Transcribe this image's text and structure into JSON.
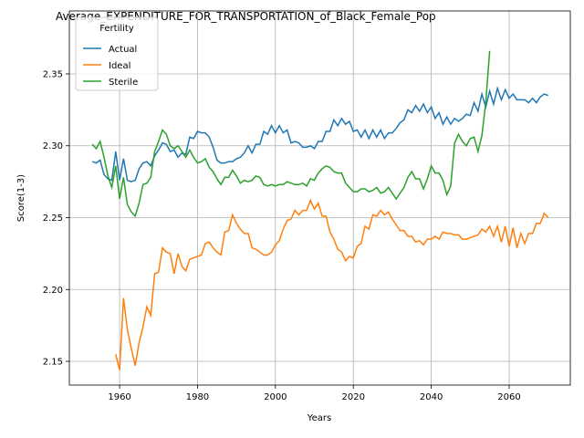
{
  "chart_data": {
    "type": "line",
    "title": "Average_EXPENDITURE_FOR_TRANSPORTATION_of_Black_Female_Pop",
    "x_label": "Years",
    "y_label": "Score(1-3)",
    "legend_title": "Fertility",
    "legend": "upper left",
    "grid": true,
    "xlim": [
      1947.1,
      2075.7
    ],
    "ylim": [
      2.1335,
      2.3938
    ],
    "xticks": [
      1960,
      1980,
      2000,
      2020,
      2040,
      2060
    ],
    "yticks": [
      2.15,
      {
        "value": 2.2,
        "label": "2.20"
      },
      2.25,
      {
        "value": 2.3,
        "label": "2.30"
      },
      2.35
    ],
    "x": [
      1953,
      1954,
      1955,
      1956,
      1957,
      1958,
      1959,
      1960,
      1961,
      1962,
      1963,
      1964,
      1965,
      1966,
      1967,
      1968,
      1969,
      1970,
      1971,
      1972,
      1973,
      1974,
      1975,
      1976,
      1977,
      1978,
      1979,
      1980,
      1981,
      1982,
      1983,
      1984,
      1985,
      1986,
      1987,
      1988,
      1989,
      1990,
      1991,
      1992,
      1993,
      1994,
      1995,
      1996,
      1997,
      1998,
      1999,
      2000,
      2001,
      2002,
      2003,
      2004,
      2005,
      2006,
      2007,
      2008,
      2009,
      2010,
      2011,
      2012,
      2013,
      2014,
      2015,
      2016,
      2017,
      2018,
      2019,
      2020,
      2021,
      2022,
      2023,
      2024,
      2025,
      2026,
      2027,
      2028,
      2029,
      2030,
      2031,
      2032,
      2033,
      2034,
      2035,
      2036,
      2037,
      2038,
      2039,
      2040,
      2041,
      2042,
      2043,
      2044,
      2045,
      2046,
      2047,
      2048,
      2049,
      2050,
      2051,
      2052,
      2053,
      2054,
      2055,
      2056,
      2057,
      2058,
      2059,
      2060,
      2061,
      2062,
      2063,
      2064,
      2065,
      2066,
      2067,
      2068,
      2069,
      2070
    ],
    "series": [
      {
        "name": "Actual",
        "color": "#1f77b4",
        "values": [
          2.289,
          2.288,
          2.29,
          2.28,
          2.277,
          2.276,
          2.296,
          2.276,
          2.291,
          2.276,
          2.275,
          2.276,
          2.284,
          2.288,
          2.289,
          2.286,
          2.293,
          2.297,
          2.302,
          2.301,
          2.296,
          2.297,
          2.292,
          2.295,
          2.294,
          2.306,
          2.305,
          2.31,
          2.309,
          2.309,
          2.306,
          2.299,
          2.29,
          2.288,
          2.288,
          2.289,
          2.289,
          2.291,
          2.292,
          2.295,
          2.3,
          2.295,
          2.301,
          2.301,
          2.31,
          2.308,
          2.314,
          2.309,
          2.314,
          2.309,
          2.311,
          2.302,
          2.303,
          2.302,
          2.299,
          2.299,
          2.3,
          2.298,
          2.303,
          2.303,
          2.31,
          2.31,
          2.318,
          2.314,
          2.319,
          2.315,
          2.317,
          2.31,
          2.311,
          2.306,
          2.311,
          2.305,
          2.311,
          2.306,
          2.311,
          2.305,
          2.309,
          2.309,
          2.312,
          2.316,
          2.318,
          2.325,
          2.323,
          2.328,
          2.324,
          2.329,
          2.323,
          2.327,
          2.319,
          2.323,
          2.315,
          2.32,
          2.315,
          2.319,
          2.317,
          2.319,
          2.322,
          2.321,
          2.33,
          2.324,
          2.336,
          2.327,
          2.338,
          2.329,
          2.34,
          2.332,
          2.339,
          2.333,
          2.336,
          2.332,
          2.332,
          2.332,
          2.33,
          2.333,
          2.33,
          2.334,
          2.336,
          2.335
        ]
      },
      {
        "name": "Ideal",
        "color": "#ff7f0e",
        "values": [
          null,
          null,
          null,
          null,
          null,
          null,
          2.155,
          2.144,
          2.194,
          2.172,
          2.159,
          2.147,
          2.163,
          2.174,
          2.188,
          2.182,
          2.211,
          2.212,
          2.229,
          2.226,
          2.225,
          2.211,
          2.225,
          2.216,
          2.213,
          2.221,
          2.222,
          2.223,
          2.224,
          2.232,
          2.233,
          2.229,
          2.226,
          2.224,
          2.24,
          2.241,
          2.252,
          2.246,
          2.242,
          2.239,
          2.239,
          2.229,
          2.228,
          2.226,
          2.224,
          2.224,
          2.226,
          2.231,
          2.234,
          2.242,
          2.248,
          2.249,
          2.255,
          2.252,
          2.255,
          2.255,
          2.262,
          2.256,
          2.26,
          2.251,
          2.251,
          2.24,
          2.235,
          2.228,
          2.226,
          2.22,
          2.223,
          2.222,
          2.23,
          2.232,
          2.244,
          2.242,
          2.252,
          2.251,
          2.255,
          2.252,
          2.254,
          2.249,
          2.245,
          2.241,
          2.241,
          2.237,
          2.237,
          2.233,
          2.234,
          2.231,
          2.235,
          2.235,
          2.237,
          2.235,
          2.24,
          2.239,
          2.239,
          2.238,
          2.238,
          2.235,
          2.235,
          2.236,
          2.237,
          2.238,
          2.242,
          2.24,
          2.244,
          2.237,
          2.244,
          2.233,
          2.244,
          2.23,
          2.243,
          2.229,
          2.239,
          2.232,
          2.239,
          2.239,
          2.246,
          2.246,
          2.253,
          2.25
        ]
      },
      {
        "name": "Sterile",
        "color": "#2ca02c",
        "values": [
          2.301,
          2.298,
          2.303,
          2.292,
          2.279,
          2.271,
          2.286,
          2.263,
          2.278,
          2.259,
          2.254,
          2.251,
          2.26,
          2.273,
          2.274,
          2.278,
          2.296,
          2.303,
          2.311,
          2.308,
          2.3,
          2.298,
          2.3,
          2.296,
          2.292,
          2.297,
          2.292,
          2.288,
          2.289,
          2.291,
          2.285,
          2.282,
          2.277,
          2.273,
          2.278,
          2.278,
          2.283,
          2.279,
          2.274,
          2.276,
          2.275,
          2.276,
          2.279,
          2.278,
          2.273,
          2.272,
          2.273,
          2.272,
          2.273,
          2.273,
          2.275,
          2.274,
          2.273,
          2.273,
          2.274,
          2.272,
          2.277,
          2.276,
          2.281,
          2.284,
          2.286,
          2.285,
          2.282,
          2.281,
          2.281,
          2.274,
          2.271,
          2.268,
          2.268,
          2.27,
          2.27,
          2.268,
          2.269,
          2.271,
          2.267,
          2.268,
          2.271,
          2.267,
          2.263,
          2.267,
          2.271,
          2.278,
          2.282,
          2.277,
          2.277,
          2.27,
          2.277,
          2.286,
          2.281,
          2.281,
          2.276,
          2.266,
          2.272,
          2.302,
          2.308,
          2.303,
          2.3,
          2.305,
          2.306,
          2.296,
          2.307,
          2.33,
          2.366,
          null,
          null,
          null,
          null,
          null,
          null,
          null,
          null,
          null,
          null,
          null,
          null,
          null,
          null,
          null
        ]
      }
    ]
  }
}
